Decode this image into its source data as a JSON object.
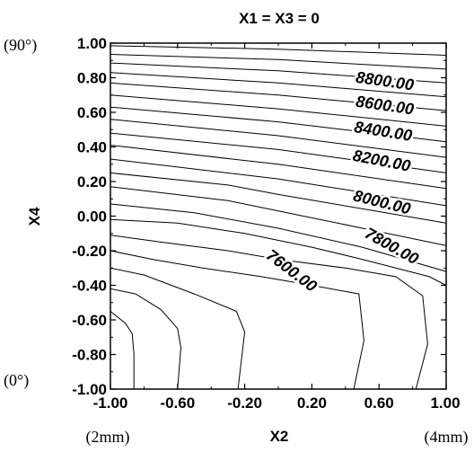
{
  "chart_data": {
    "type": "contour",
    "title": "X1 = X3 = 0",
    "xlabel": "X2",
    "ylabel": "X4",
    "xlim": [
      -1,
      1
    ],
    "ylim": [
      -1,
      1
    ],
    "x_ticks": [
      "-1.00",
      "-0.60",
      "-0.20",
      "0.20",
      "0.60",
      "1.00"
    ],
    "y_ticks": [
      "1.00",
      "0.80",
      "0.60",
      "0.40",
      "0.20",
      "0.00",
      "-0.20",
      "-0.40",
      "-0.60",
      "-0.80",
      "-1.00"
    ],
    "x_annotations": {
      "left": "(2mm)",
      "right": "(4mm)"
    },
    "y_annotations": {
      "top": "(90°)",
      "bottom": "(0°)"
    },
    "contour_labels": [
      {
        "text": "8800.00",
        "x": 0.63,
        "y": 0.75,
        "angle": 8
      },
      {
        "text": "8600.00",
        "x": 0.63,
        "y": 0.61,
        "angle": 8
      },
      {
        "text": "8400.00",
        "x": 0.62,
        "y": 0.46,
        "angle": 9
      },
      {
        "text": "8200.00",
        "x": 0.61,
        "y": 0.29,
        "angle": 11
      },
      {
        "text": "8000.00",
        "x": 0.61,
        "y": 0.05,
        "angle": 14
      },
      {
        "text": "7800.00",
        "x": 0.66,
        "y": -0.2,
        "angle": 29
      },
      {
        "text": "7600.00",
        "x": 0.06,
        "y": -0.34,
        "angle": 37
      }
    ],
    "contour_lines": [
      [
        [
          -1.0,
          0.985
        ],
        [
          0.0,
          0.965
        ],
        [
          1.0,
          0.93
        ]
      ],
      [
        [
          -1.0,
          0.935
        ],
        [
          0.0,
          0.905
        ],
        [
          1.0,
          0.85
        ]
      ],
      [
        [
          -1.0,
          0.885
        ],
        [
          0.0,
          0.84
        ],
        [
          1.0,
          0.77
        ]
      ],
      [
        [
          -1.0,
          0.83
        ],
        [
          0.0,
          0.77
        ],
        [
          1.0,
          0.69
        ]
      ],
      [
        [
          -1.0,
          0.77
        ],
        [
          0.0,
          0.7
        ],
        [
          1.0,
          0.61
        ]
      ],
      [
        [
          -1.0,
          0.7
        ],
        [
          0.0,
          0.62
        ],
        [
          1.0,
          0.52
        ]
      ],
      [
        [
          -1.0,
          0.63
        ],
        [
          0.0,
          0.545
        ],
        [
          1.0,
          0.43
        ]
      ],
      [
        [
          -1.0,
          0.56
        ],
        [
          0.0,
          0.465
        ],
        [
          1.0,
          0.34
        ]
      ],
      [
        [
          -1.0,
          0.48
        ],
        [
          0.0,
          0.385
        ],
        [
          1.0,
          0.25
        ]
      ],
      [
        [
          -1.0,
          0.41
        ],
        [
          0.0,
          0.3
        ],
        [
          1.0,
          0.16
        ]
      ],
      [
        [
          -1.0,
          0.33
        ],
        [
          0.0,
          0.215
        ],
        [
          1.0,
          0.06
        ]
      ],
      [
        [
          -1.0,
          0.25
        ],
        [
          -0.3,
          0.18
        ],
        [
          0.0,
          0.125
        ],
        [
          1.0,
          -0.04
        ]
      ],
      [
        [
          -1.0,
          0.17
        ],
        [
          -0.3,
          0.09
        ],
        [
          0.0,
          0.03
        ],
        [
          1.0,
          -0.17
        ]
      ],
      [
        [
          -1.0,
          0.07
        ],
        [
          -0.5,
          0.02
        ],
        [
          0.0,
          -0.07
        ],
        [
          0.5,
          -0.18
        ],
        [
          1.0,
          -0.32
        ]
      ],
      [
        [
          -1.0,
          -0.02
        ],
        [
          -0.6,
          -0.04
        ],
        [
          -0.2,
          -0.1
        ],
        [
          0.2,
          -0.18
        ],
        [
          0.5,
          -0.25
        ],
        [
          0.9,
          -0.35
        ],
        [
          1.0,
          -0.4
        ]
      ],
      [
        [
          -1.0,
          -0.11
        ],
        [
          -0.7,
          -0.15
        ],
        [
          -0.3,
          -0.2
        ],
        [
          0.0,
          -0.25
        ],
        [
          0.4,
          -0.3
        ],
        [
          0.7,
          -0.35
        ],
        [
          0.86,
          -0.46
        ],
        [
          0.89,
          -0.74
        ],
        [
          0.82,
          -1.0
        ]
      ],
      [
        [
          -1.0,
          -0.2
        ],
        [
          -0.75,
          -0.25
        ],
        [
          -0.45,
          -0.3
        ],
        [
          -0.1,
          -0.35
        ],
        [
          0.2,
          -0.4
        ],
        [
          0.48,
          -0.45
        ],
        [
          0.51,
          -0.72
        ],
        [
          0.45,
          -1.0
        ]
      ],
      [
        [
          -1.0,
          -0.3
        ],
        [
          -0.8,
          -0.34
        ],
        [
          -0.5,
          -0.45
        ],
        [
          -0.25,
          -0.55
        ],
        [
          -0.2,
          -0.67
        ],
        [
          -0.24,
          -1.0
        ]
      ],
      [
        [
          -1.0,
          -0.42
        ],
        [
          -0.85,
          -0.45
        ],
        [
          -0.7,
          -0.54
        ],
        [
          -0.6,
          -0.65
        ],
        [
          -0.58,
          -0.76
        ],
        [
          -0.6,
          -1.0
        ]
      ],
      [
        [
          -1.0,
          -0.55
        ],
        [
          -0.91,
          -0.62
        ],
        [
          -0.87,
          -0.68
        ],
        [
          -0.86,
          -0.8
        ],
        [
          -0.86,
          -1.0
        ]
      ]
    ]
  }
}
